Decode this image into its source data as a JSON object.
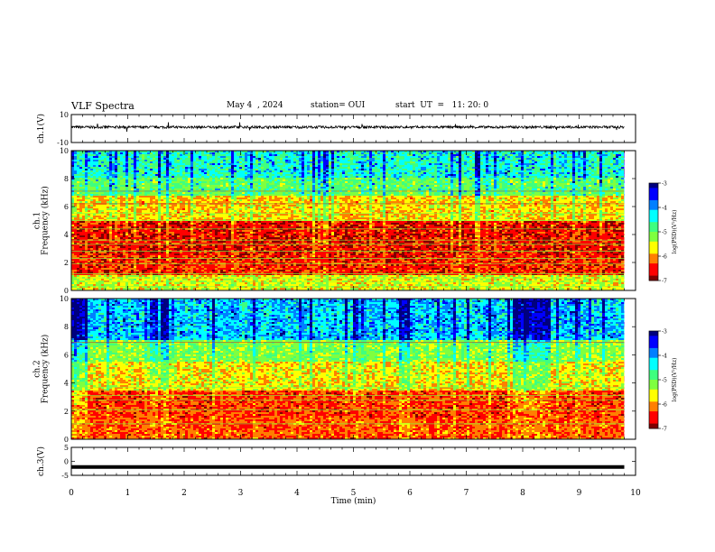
{
  "header": {
    "title": "VLF Spectra",
    "date": "May 4  , 2024",
    "station": "station= OUI",
    "start_ut": "start  UT  =   11: 20: 0"
  },
  "chart_data": [
    {
      "type": "line",
      "panel": "ch1-waveform",
      "ylabel": "ch.1(V)",
      "ylim": [
        -10,
        10
      ],
      "yticks": [
        "10",
        "-10"
      ],
      "xlim": [
        0,
        10
      ],
      "data_extent_min": [
        0,
        9.8
      ],
      "signal": "dense noise waveform centred near +1 V with amplitude about ±1 V and sparse spikes"
    },
    {
      "type": "heatmap",
      "panel": "ch1-spectrogram",
      "ylabel": "ch.1\nFrequency  (kHz)",
      "ylim": [
        0,
        10
      ],
      "yticks": [
        "0",
        "2",
        "4",
        "6",
        "8",
        "10"
      ],
      "xlim": [
        0,
        10
      ],
      "colorbar": {
        "label": "log(PSD)(V²/Hz)",
        "ticks": [
          "-3",
          "-4",
          "-5",
          "-6",
          "-7"
        ],
        "range": [
          -7,
          -3
        ]
      },
      "typical_log_psd_by_band_khz": [
        {
          "band": [
            0,
            1
          ],
          "value": -5.6
        },
        {
          "band": [
            1,
            2.5
          ],
          "value": -6.5
        },
        {
          "band": [
            2.5,
            3.5
          ],
          "value": -6.6
        },
        {
          "band": [
            3.5,
            5
          ],
          "value": -6.6
        },
        {
          "band": [
            5,
            6.8
          ],
          "value": -5.8
        },
        {
          "band": [
            6.8,
            8
          ],
          "value": -5.0
        },
        {
          "band": [
            8,
            10
          ],
          "value": -4.5
        }
      ],
      "narrowband_lines_khz": [
        0.3,
        0.6,
        0.9,
        1.2,
        1.9,
        2.3,
        2.8,
        3.3,
        3.6,
        4.4,
        5.0,
        5.5,
        6.2,
        7.1
      ]
    },
    {
      "type": "heatmap",
      "panel": "ch2-spectrogram",
      "ylabel": "ch.2\nFrequency  (kHz)",
      "ylim": [
        0,
        10
      ],
      "yticks": [
        "0",
        "2",
        "4",
        "6",
        "8",
        "10"
      ],
      "xlim": [
        0,
        10
      ],
      "colorbar": {
        "label": "log(PSD)(V²/Hz)",
        "ticks": [
          "-3",
          "-4",
          "-5",
          "-6",
          "-7"
        ],
        "range": [
          -7,
          -3
        ]
      },
      "typical_log_psd_by_band_khz": [
        {
          "band": [
            0,
            1.5
          ],
          "value": -6.3
        },
        {
          "band": [
            1.5,
            3.5
          ],
          "value": -6.4
        },
        {
          "band": [
            3.5,
            5.5
          ],
          "value": -5.7
        },
        {
          "band": [
            5.5,
            7
          ],
          "value": -5.2
        },
        {
          "band": [
            7,
            10
          ],
          "value": -4.2
        }
      ],
      "broadband_bursts_min": [
        [
          0.0,
          0.3
        ],
        [
          1.6,
          1.75
        ],
        [
          5.8,
          6.0
        ],
        [
          7.85,
          8.5
        ]
      ],
      "narrowband_lines_khz": [
        1.1,
        2.1,
        2.8,
        3.1,
        3.7,
        6.9
      ]
    },
    {
      "type": "line",
      "panel": "ch3-waveform",
      "ylabel": "ch.3(V)",
      "ylim": [
        -5,
        5
      ],
      "yticks": [
        "5",
        "0",
        "-5"
      ],
      "xlim": [
        0,
        10
      ],
      "data_extent_min": [
        0,
        9.8
      ],
      "signal": "flat trace at about -2 V"
    }
  ],
  "xaxis": {
    "label": "Time  (min)",
    "ticks": [
      "0",
      "1",
      "2",
      "3",
      "4",
      "5",
      "6",
      "7",
      "8",
      "9",
      "10"
    ]
  },
  "colors": {
    "colormap": [
      "#00007f",
      "#0000ff",
      "#007fff",
      "#00ffff",
      "#3fff7f",
      "#7fff3f",
      "#ffff00",
      "#ff7f00",
      "#ff0000",
      "#7f0000"
    ],
    "frame": "#000000",
    "trace": "#000000"
  }
}
